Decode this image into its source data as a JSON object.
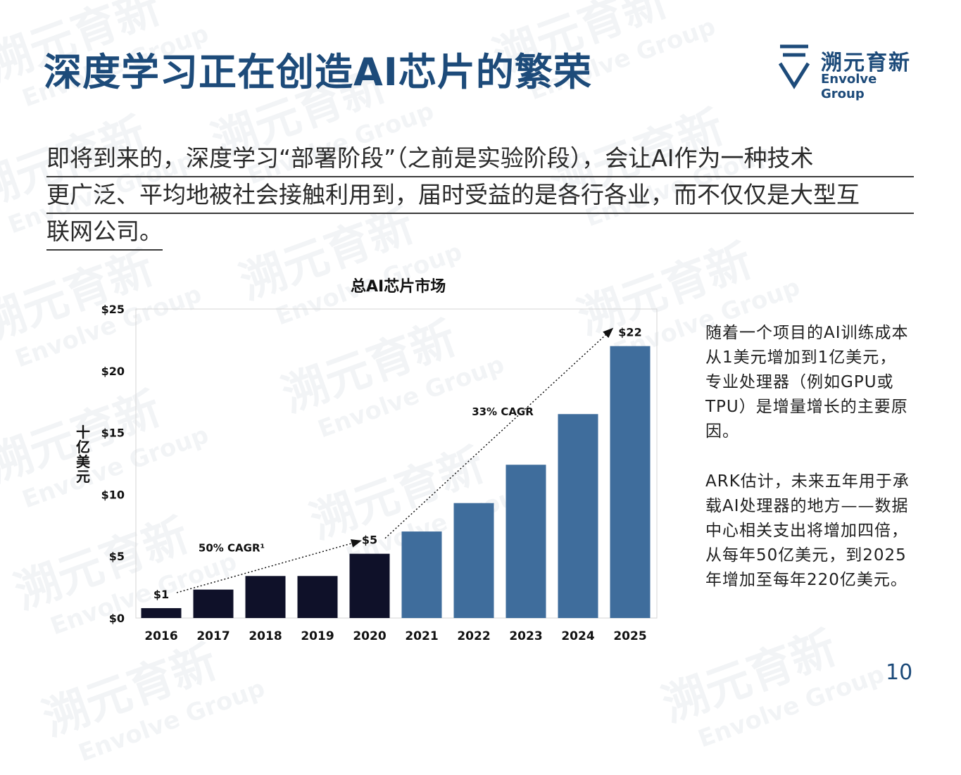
{
  "header": {
    "title": "深度学习正在创造AI芯片的繁荣",
    "logo_zh": "溯元育新",
    "logo_en": "Envolve Group"
  },
  "intro": {
    "line1": "即将到来的，深度学习“部署阶段”（之前是实验阶段），会让AI作为一种技术",
    "line2": "更广泛、平均地被社会接触利用到，届时受益的是各行各业，而不仅仅是大型互",
    "line3": "联网公司。"
  },
  "side": {
    "para1": "随着一个项目的AI训练成本从1美元增加到1亿美元，专业处理器（例如GPU或TPU）是增量增长的主要原因。",
    "para2": "ARK估计，未来五年用于承载AI处理器的地方——数据中心相关支出将增加四倍，从每年50亿美元，到2025年增加至每年220亿美元。"
  },
  "page_number": "10",
  "watermark": {
    "zh": "溯元育新",
    "en": "Envolve Group"
  },
  "colors": {
    "brand": "#1d4b7a",
    "bar_dark": "#0f1129",
    "bar_blue": "#3f6d9c"
  },
  "chart_data": {
    "type": "bar",
    "title": "总AI芯片市场",
    "ylabel": "十亿美元",
    "xlabel": "",
    "ylim": [
      0,
      25
    ],
    "yticks": [
      0,
      5,
      10,
      15,
      20,
      25
    ],
    "ytick_labels": [
      "$0",
      "$5",
      "$10",
      "$15",
      "$20",
      "$25"
    ],
    "categories": [
      "2016",
      "2017",
      "2018",
      "2019",
      "2020",
      "2021",
      "2022",
      "2023",
      "2024",
      "2025"
    ],
    "values": [
      0.8,
      2.3,
      3.4,
      3.4,
      5.2,
      7.0,
      9.3,
      12.4,
      16.5,
      22.0
    ],
    "bar_colors": [
      "#0f1129",
      "#0f1129",
      "#0f1129",
      "#0f1129",
      "#0f1129",
      "#3f6d9c",
      "#3f6d9c",
      "#3f6d9c",
      "#3f6d9c",
      "#3f6d9c"
    ],
    "data_labels": [
      {
        "category": "2016",
        "text": "$1"
      },
      {
        "category": "2020",
        "text": "$5"
      },
      {
        "category": "2025",
        "text": "$22"
      }
    ],
    "annotations": [
      {
        "text": "50% CAGR¹",
        "from": "2016",
        "to": "2020"
      },
      {
        "text": "33% CAGR",
        "from": "2020",
        "to": "2025"
      }
    ],
    "grid": false
  }
}
